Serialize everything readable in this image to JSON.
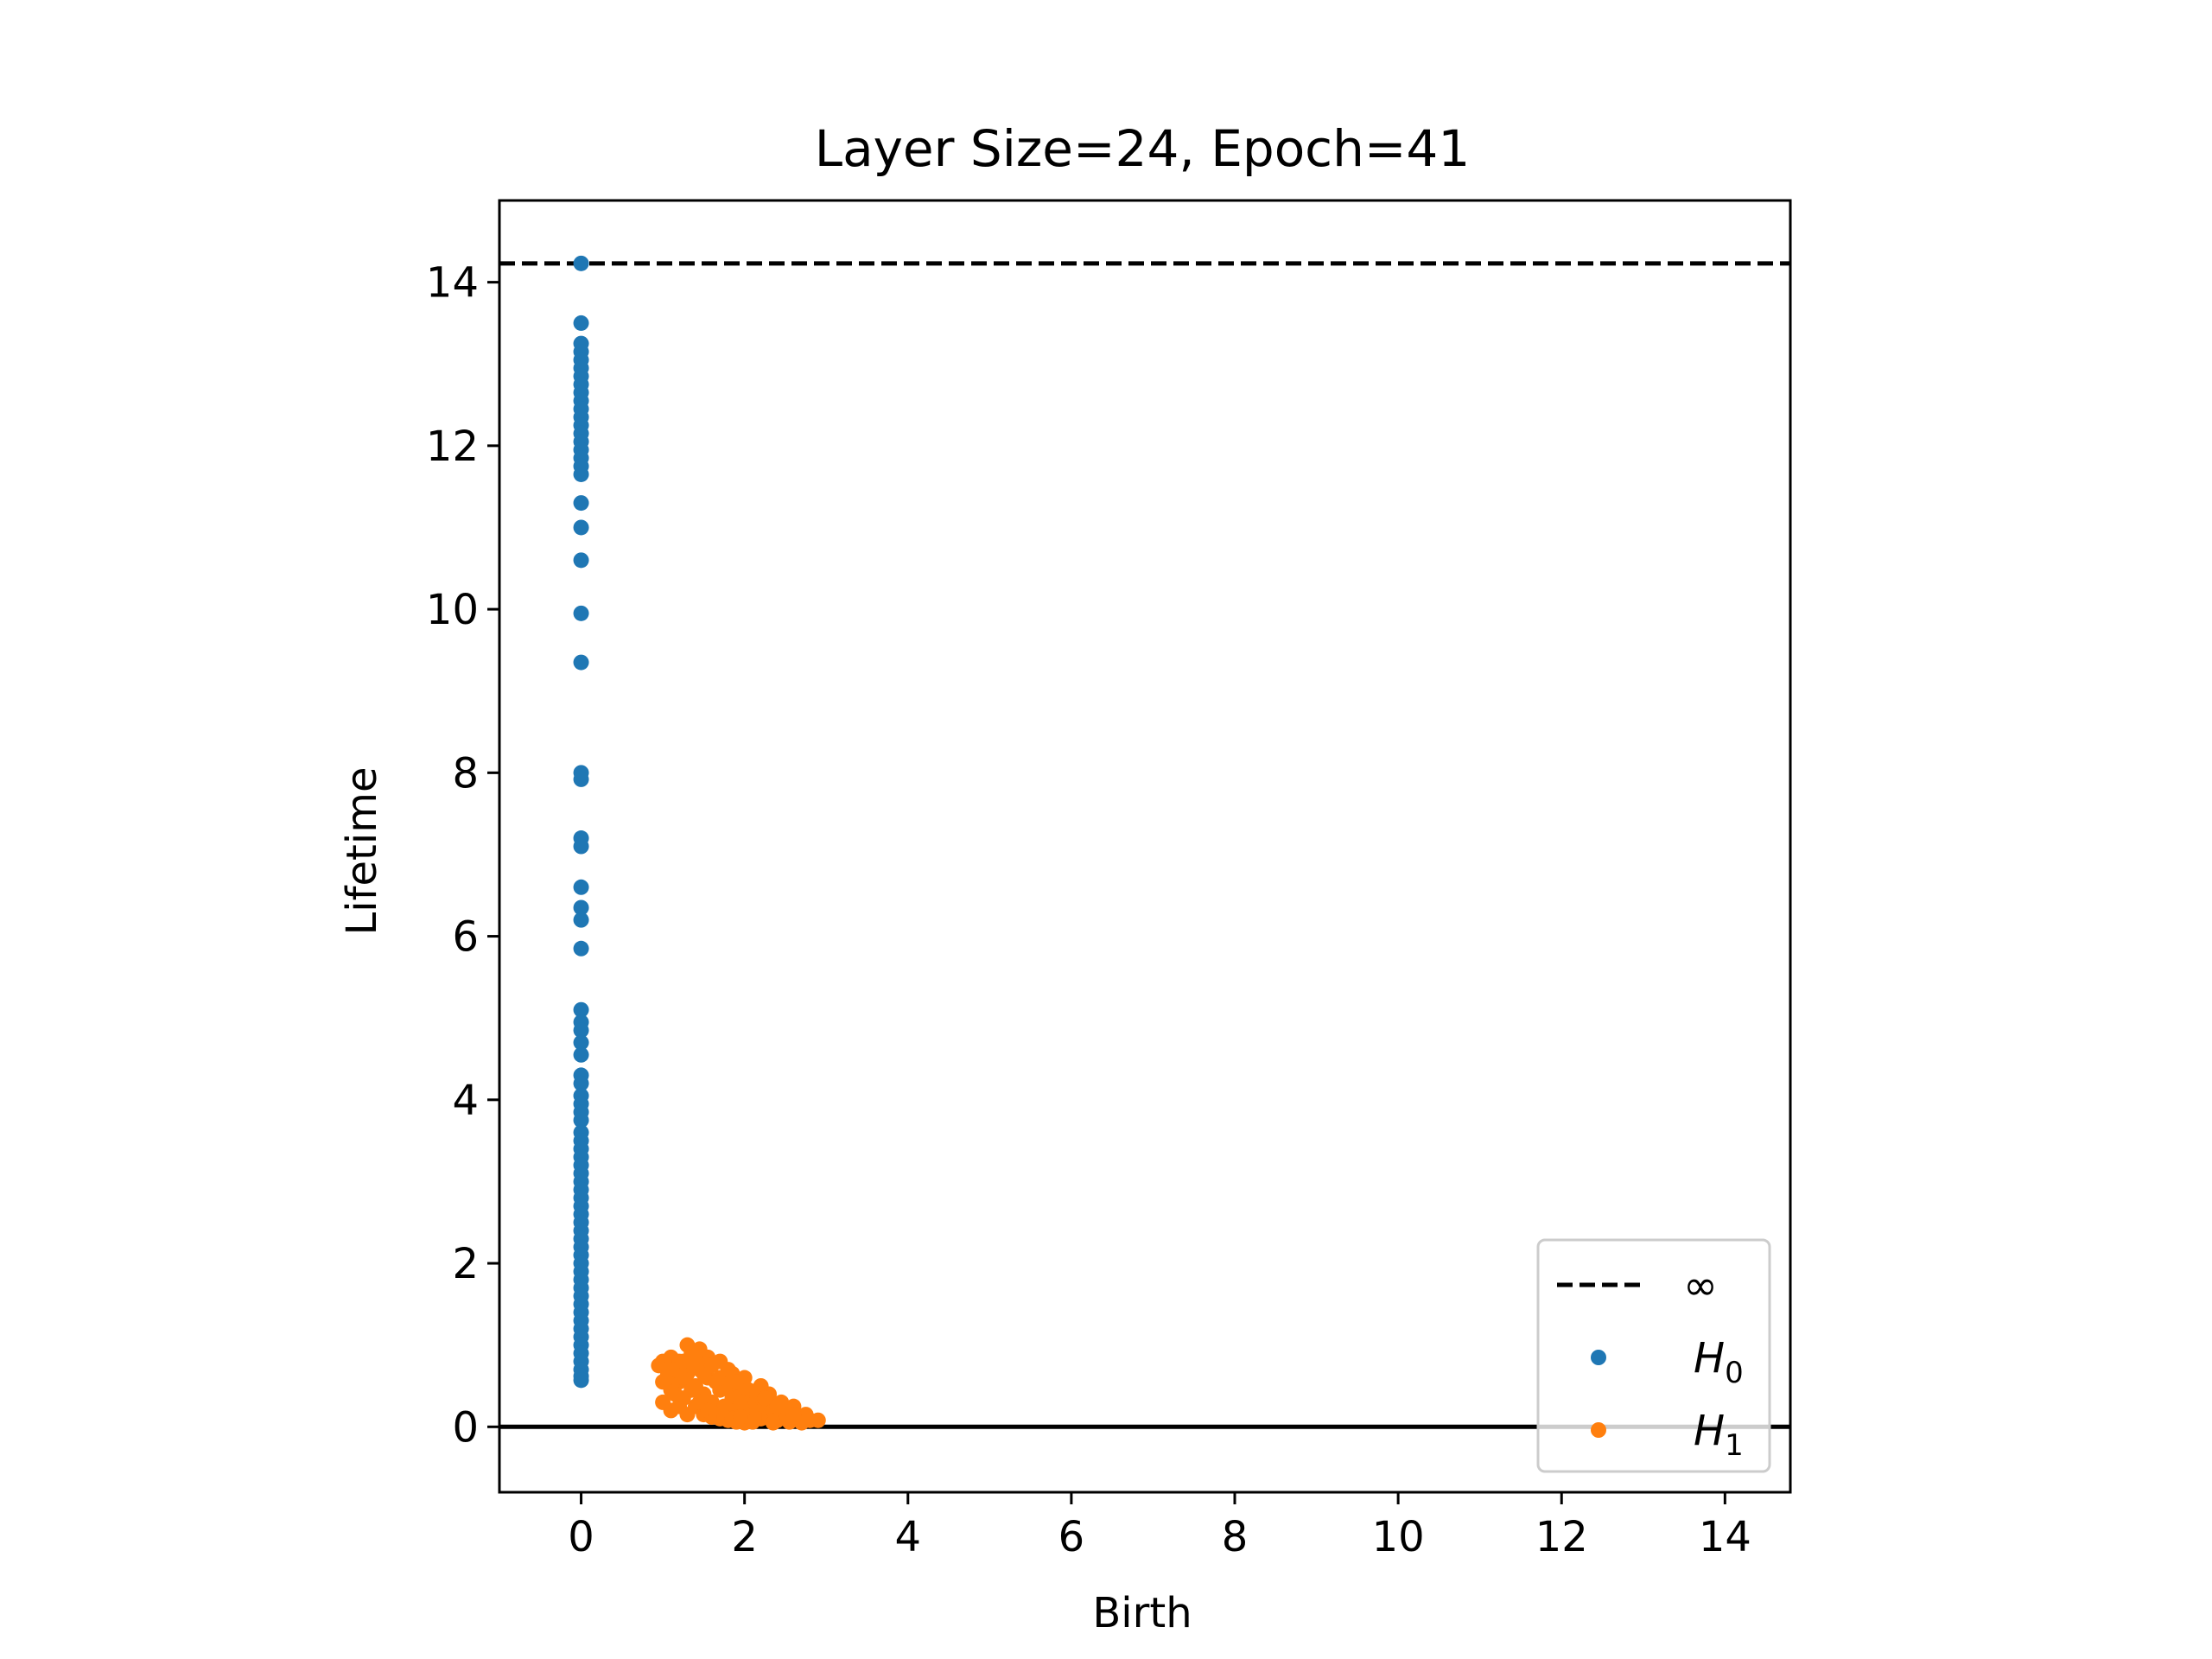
{
  "chart_data": {
    "type": "scatter",
    "title": "Layer Size=24, Epoch=41",
    "xlabel": "Birth",
    "ylabel": "Lifetime",
    "xlim": [
      -1,
      14.8
    ],
    "ylim": [
      -0.8,
      15.0
    ],
    "x_ticks": [
      0,
      2,
      4,
      6,
      8,
      10,
      12,
      14
    ],
    "y_ticks": [
      0,
      2,
      4,
      6,
      8,
      10,
      12,
      14
    ],
    "x_tick_labels": [
      "0",
      "2",
      "4",
      "6",
      "8",
      "10",
      "12",
      "14"
    ],
    "y_tick_labels": [
      "0",
      "2",
      "4",
      "6",
      "8",
      "10",
      "12",
      "14"
    ],
    "infinity_line": {
      "y": 14.23,
      "label": "∞",
      "style": "dashed",
      "color": "#000000"
    },
    "zero_line": {
      "y": 0,
      "color": "#000000"
    },
    "legend": {
      "placement": "lower right",
      "entries": [
        {
          "label": "∞",
          "marker": "dashed-line",
          "color": "#000000"
        },
        {
          "label": "H",
          "sub": "0",
          "marker": "dot",
          "color": "#1f77b4"
        },
        {
          "label": "H",
          "sub": "1",
          "marker": "dot",
          "color": "#ff7f0e"
        }
      ]
    },
    "series": [
      {
        "name": "H0",
        "color": "#1f77b4",
        "points": [
          [
            0,
            14.23
          ],
          [
            0,
            13.5
          ],
          [
            0,
            13.25
          ],
          [
            0,
            13.15
          ],
          [
            0,
            13.05
          ],
          [
            0,
            12.95
          ],
          [
            0,
            12.85
          ],
          [
            0,
            12.75
          ],
          [
            0,
            12.65
          ],
          [
            0,
            12.55
          ],
          [
            0,
            12.45
          ],
          [
            0,
            12.35
          ],
          [
            0,
            12.25
          ],
          [
            0,
            12.15
          ],
          [
            0,
            12.05
          ],
          [
            0,
            11.95
          ],
          [
            0,
            11.85
          ],
          [
            0,
            11.75
          ],
          [
            0,
            11.65
          ],
          [
            0,
            11.3
          ],
          [
            0,
            11.0
          ],
          [
            0,
            10.6
          ],
          [
            0,
            9.95
          ],
          [
            0,
            9.35
          ],
          [
            0,
            8.0
          ],
          [
            0,
            7.92
          ],
          [
            0,
            7.2
          ],
          [
            0,
            7.1
          ],
          [
            0,
            6.6
          ],
          [
            0,
            6.35
          ],
          [
            0,
            6.2
          ],
          [
            0,
            5.85
          ],
          [
            0,
            5.1
          ],
          [
            0,
            4.95
          ],
          [
            0,
            4.85
          ],
          [
            0,
            4.7
          ],
          [
            0,
            4.55
          ],
          [
            0,
            4.3
          ],
          [
            0,
            4.2
          ],
          [
            0,
            4.05
          ],
          [
            0,
            3.95
          ],
          [
            0,
            3.85
          ],
          [
            0,
            3.75
          ],
          [
            0,
            3.6
          ],
          [
            0,
            3.5
          ],
          [
            0,
            3.4
          ],
          [
            0,
            3.3
          ],
          [
            0,
            3.2
          ],
          [
            0,
            3.1
          ],
          [
            0,
            3.0
          ],
          [
            0,
            2.9
          ],
          [
            0,
            2.8
          ],
          [
            0,
            2.7
          ],
          [
            0,
            2.6
          ],
          [
            0,
            2.5
          ],
          [
            0,
            2.4
          ],
          [
            0,
            2.3
          ],
          [
            0,
            2.2
          ],
          [
            0,
            2.1
          ],
          [
            0,
            2.0
          ],
          [
            0,
            1.9
          ],
          [
            0,
            1.8
          ],
          [
            0,
            1.7
          ],
          [
            0,
            1.6
          ],
          [
            0,
            1.5
          ],
          [
            0,
            1.4
          ],
          [
            0,
            1.3
          ],
          [
            0,
            1.2
          ],
          [
            0,
            1.1
          ],
          [
            0,
            1.0
          ],
          [
            0,
            0.9
          ],
          [
            0,
            0.8
          ],
          [
            0,
            0.7
          ],
          [
            0,
            0.62
          ],
          [
            0,
            0.57
          ]
        ]
      },
      {
        "name": "H1",
        "color": "#ff7f0e",
        "points": [
          [
            0.95,
            0.75
          ],
          [
            1.0,
            0.8
          ],
          [
            1.05,
            0.7
          ],
          [
            1.1,
            0.85
          ],
          [
            1.15,
            0.65
          ],
          [
            1.2,
            0.8
          ],
          [
            1.3,
            1.0
          ],
          [
            1.35,
            0.9
          ],
          [
            1.45,
            0.95
          ],
          [
            1.55,
            0.85
          ],
          [
            1.7,
            0.8
          ],
          [
            1.85,
            0.65
          ],
          [
            2.0,
            0.6
          ],
          [
            2.2,
            0.5
          ],
          [
            2.3,
            0.4
          ],
          [
            2.45,
            0.3
          ],
          [
            2.6,
            0.25
          ],
          [
            2.75,
            0.15
          ],
          [
            2.9,
            0.08
          ],
          [
            1.0,
            0.55
          ],
          [
            1.1,
            0.45
          ],
          [
            1.2,
            0.55
          ],
          [
            1.25,
            0.35
          ],
          [
            1.3,
            0.65
          ],
          [
            1.4,
            0.5
          ],
          [
            1.45,
            0.7
          ],
          [
            1.5,
            0.4
          ],
          [
            1.55,
            0.6
          ],
          [
            1.6,
            0.3
          ],
          [
            1.65,
            0.55
          ],
          [
            1.7,
            0.45
          ],
          [
            1.75,
            0.25
          ],
          [
            1.8,
            0.5
          ],
          [
            1.85,
            0.35
          ],
          [
            1.9,
            0.2
          ],
          [
            1.95,
            0.45
          ],
          [
            2.0,
            0.3
          ],
          [
            2.05,
            0.15
          ],
          [
            2.1,
            0.35
          ],
          [
            2.15,
            0.2
          ],
          [
            2.2,
            0.1
          ],
          [
            2.25,
            0.25
          ],
          [
            2.3,
            0.12
          ],
          [
            2.35,
            0.2
          ],
          [
            2.4,
            0.08
          ],
          [
            2.5,
            0.15
          ],
          [
            2.55,
            0.06
          ],
          [
            2.65,
            0.1
          ],
          [
            2.7,
            0.05
          ],
          [
            2.8,
            0.08
          ],
          [
            1.0,
            0.3
          ],
          [
            1.1,
            0.2
          ],
          [
            1.2,
            0.25
          ],
          [
            1.3,
            0.15
          ],
          [
            1.4,
            0.25
          ],
          [
            1.5,
            0.15
          ],
          [
            1.6,
            0.12
          ],
          [
            1.7,
            0.1
          ],
          [
            1.8,
            0.08
          ],
          [
            1.9,
            0.06
          ],
          [
            2.0,
            0.05
          ],
          [
            2.1,
            0.06
          ],
          [
            1.35,
            0.45
          ],
          [
            1.45,
            0.3
          ],
          [
            1.55,
            0.2
          ],
          [
            1.65,
            0.15
          ],
          [
            1.75,
            0.12
          ],
          [
            1.85,
            0.1
          ],
          [
            1.95,
            0.12
          ],
          [
            1.15,
            0.4
          ],
          [
            1.25,
            0.6
          ],
          [
            1.35,
            0.75
          ],
          [
            1.5,
            0.65
          ],
          [
            1.6,
            0.75
          ],
          [
            1.7,
            0.6
          ],
          [
            1.8,
            0.7
          ],
          [
            1.9,
            0.55
          ],
          [
            2.05,
            0.45
          ],
          [
            2.15,
            0.4
          ],
          [
            2.25,
            0.35
          ],
          [
            2.4,
            0.25
          ],
          [
            2.6,
            0.15
          ],
          [
            1.05,
            0.6
          ],
          [
            1.15,
            0.7
          ],
          [
            1.25,
            0.8
          ],
          [
            1.4,
            0.85
          ],
          [
            1.95,
            0.3
          ],
          [
            2.35,
            0.05
          ]
        ]
      }
    ]
  }
}
